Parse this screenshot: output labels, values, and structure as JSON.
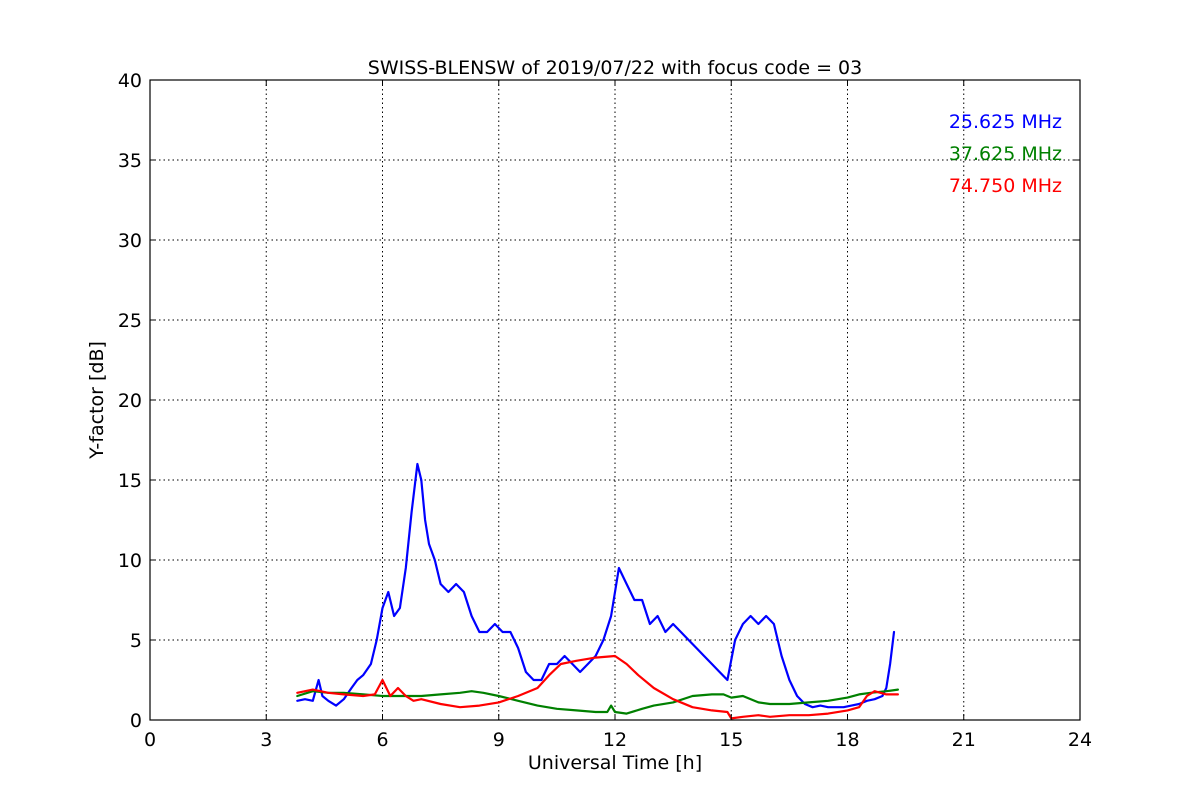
{
  "chart_data": {
    "type": "line",
    "title": "SWISS-BLENSW of 2019/07/22 with focus code = 03",
    "xlabel": "Universal Time [h]",
    "ylabel": "Y-factor [dB]",
    "xlim": [
      0,
      24
    ],
    "ylim": [
      0,
      40
    ],
    "xticks": [
      0,
      3,
      6,
      9,
      12,
      15,
      18,
      21,
      24
    ],
    "yticks": [
      0,
      5,
      10,
      15,
      20,
      25,
      30,
      35,
      40
    ],
    "grid": true,
    "legend_position": "top-right",
    "series": [
      {
        "name": "25.625 MHz",
        "color": "#0000ff",
        "x": [
          3.8,
          4.0,
          4.2,
          4.35,
          4.45,
          4.6,
          4.8,
          5.0,
          5.2,
          5.35,
          5.5,
          5.7,
          5.85,
          6.0,
          6.15,
          6.3,
          6.45,
          6.6,
          6.75,
          6.9,
          7.0,
          7.1,
          7.2,
          7.35,
          7.5,
          7.7,
          7.9,
          8.1,
          8.3,
          8.5,
          8.7,
          8.9,
          9.1,
          9.3,
          9.5,
          9.7,
          9.9,
          10.1,
          10.3,
          10.5,
          10.7,
          10.9,
          11.1,
          11.3,
          11.5,
          11.7,
          11.9,
          12.1,
          12.3,
          12.5,
          12.7,
          12.9,
          13.1,
          13.3,
          13.5,
          13.7,
          13.9,
          14.1,
          14.3,
          14.5,
          14.7,
          14.9,
          15.1,
          15.3,
          15.5,
          15.7,
          15.9,
          16.1,
          16.3,
          16.5,
          16.7,
          16.9,
          17.1,
          17.3,
          17.5,
          17.7,
          17.9,
          18.1,
          18.3,
          18.5,
          18.7,
          18.9,
          19.0,
          19.1,
          19.2
        ],
        "values": [
          1.2,
          1.3,
          1.2,
          2.5,
          1.5,
          1.2,
          0.9,
          1.3,
          2.0,
          2.5,
          2.8,
          3.5,
          5.0,
          7.0,
          8.0,
          6.5,
          7.0,
          9.5,
          13.0,
          16.0,
          15.0,
          12.5,
          11.0,
          10.0,
          8.5,
          8.0,
          8.5,
          8.0,
          6.5,
          5.5,
          5.5,
          6.0,
          5.5,
          5.5,
          4.5,
          3.0,
          2.5,
          2.5,
          3.5,
          3.5,
          4.0,
          3.5,
          3.0,
          3.5,
          4.0,
          5.0,
          6.5,
          9.5,
          8.5,
          7.5,
          7.5,
          6.0,
          6.5,
          5.5,
          6.0,
          5.5,
          5.0,
          4.5,
          4.0,
          3.5,
          3.0,
          2.5,
          5.0,
          6.0,
          6.5,
          6.0,
          6.5,
          6.0,
          4.0,
          2.5,
          1.5,
          1.0,
          0.8,
          0.9,
          0.8,
          0.8,
          0.8,
          0.9,
          1.0,
          1.2,
          1.3,
          1.5,
          2.0,
          3.5,
          5.5
        ]
      },
      {
        "name": "37.625 MHz",
        "color": "#008000",
        "x": [
          3.8,
          4.2,
          4.6,
          5.0,
          5.5,
          6.0,
          6.5,
          7.0,
          7.5,
          8.0,
          8.3,
          8.6,
          9.0,
          9.5,
          10.0,
          10.5,
          11.0,
          11.5,
          11.8,
          11.9,
          12.0,
          12.3,
          12.7,
          13.0,
          13.5,
          14.0,
          14.5,
          14.8,
          15.0,
          15.3,
          15.7,
          16.0,
          16.5,
          17.0,
          17.5,
          18.0,
          18.3,
          18.6,
          19.0,
          19.3
        ],
        "values": [
          1.5,
          1.8,
          1.7,
          1.7,
          1.6,
          1.5,
          1.5,
          1.5,
          1.6,
          1.7,
          1.8,
          1.7,
          1.5,
          1.2,
          0.9,
          0.7,
          0.6,
          0.5,
          0.5,
          0.9,
          0.5,
          0.4,
          0.7,
          0.9,
          1.1,
          1.5,
          1.6,
          1.6,
          1.4,
          1.5,
          1.1,
          1.0,
          1.0,
          1.1,
          1.2,
          1.4,
          1.6,
          1.7,
          1.8,
          1.9
        ]
      },
      {
        "name": "74.750 MHz",
        "color": "#ff0000",
        "x": [
          3.8,
          4.2,
          4.6,
          5.0,
          5.5,
          5.8,
          6.0,
          6.2,
          6.4,
          6.6,
          6.8,
          7.0,
          7.5,
          8.0,
          8.5,
          9.0,
          9.5,
          10.0,
          10.3,
          10.6,
          11.0,
          11.5,
          12.0,
          12.3,
          12.6,
          13.0,
          13.5,
          14.0,
          14.5,
          14.9,
          15.0,
          15.3,
          15.7,
          16.0,
          16.5,
          17.0,
          17.5,
          18.0,
          18.3,
          18.5,
          18.7,
          19.0,
          19.3
        ],
        "values": [
          1.7,
          1.9,
          1.7,
          1.6,
          1.5,
          1.6,
          2.5,
          1.5,
          2.0,
          1.5,
          1.2,
          1.3,
          1.0,
          0.8,
          0.9,
          1.1,
          1.5,
          2.0,
          2.8,
          3.5,
          3.7,
          3.9,
          4.0,
          3.5,
          2.8,
          2.0,
          1.3,
          0.8,
          0.6,
          0.5,
          0.1,
          0.2,
          0.3,
          0.2,
          0.3,
          0.3,
          0.4,
          0.6,
          0.8,
          1.5,
          1.8,
          1.6,
          1.6
        ]
      }
    ]
  }
}
